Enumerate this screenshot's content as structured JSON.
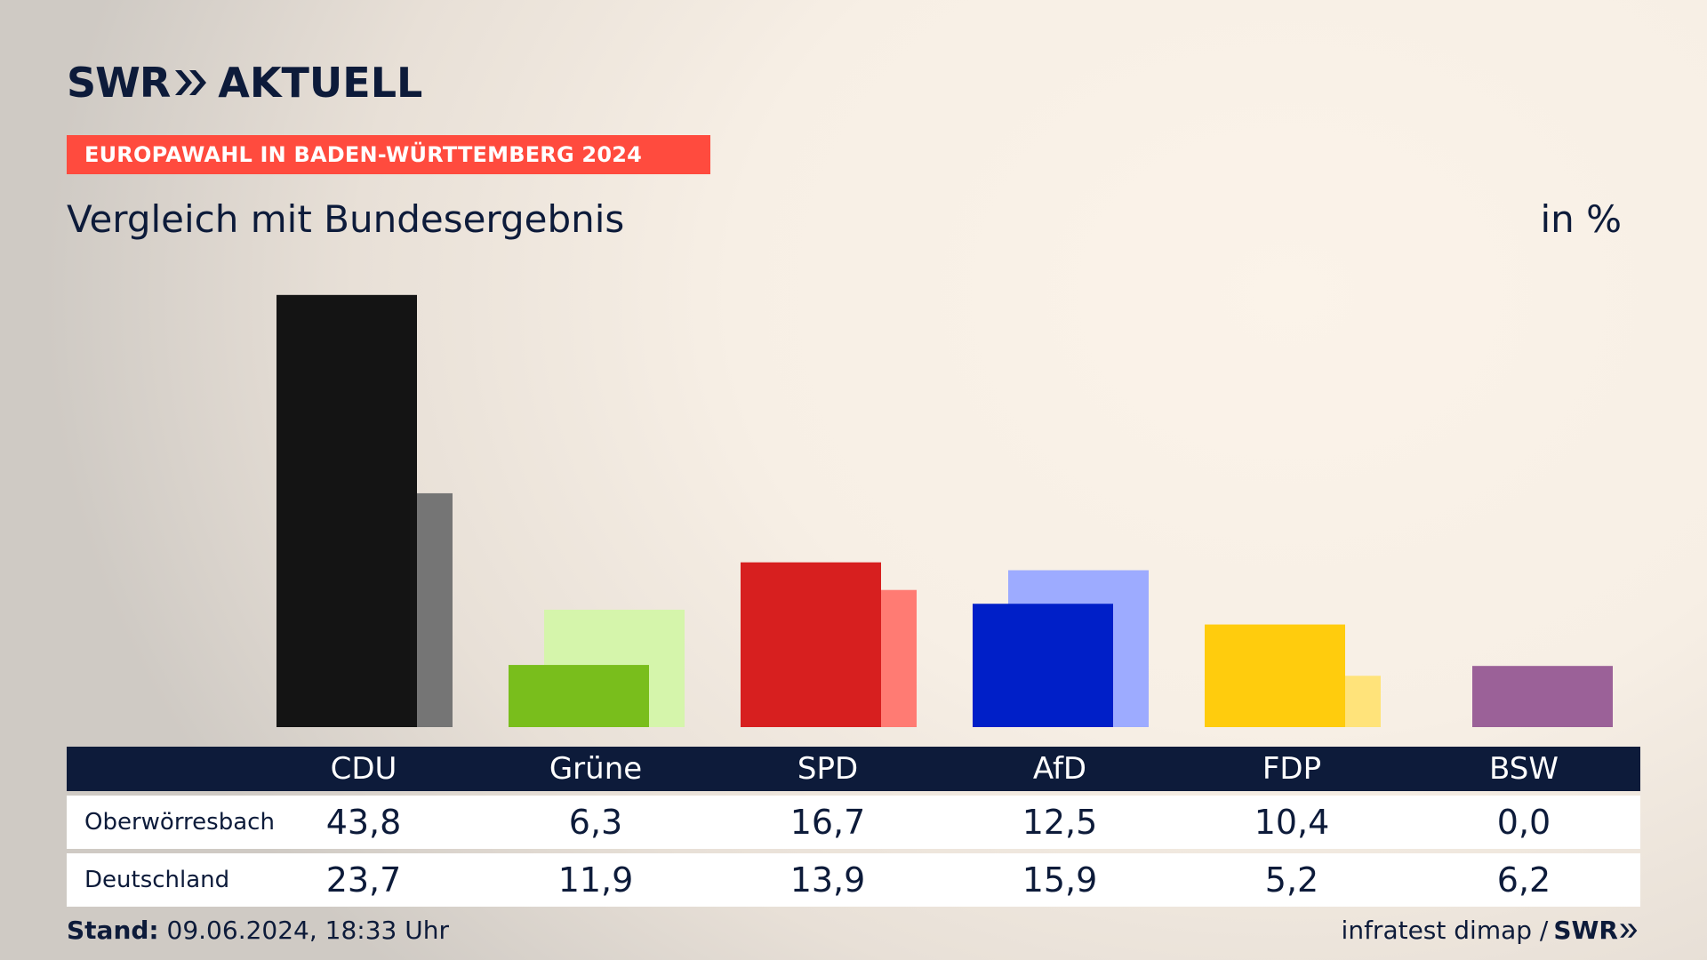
{
  "header": {
    "logo_left": "SWR",
    "logo_right": "AKTUELL",
    "banner": "EUROPAWAHL IN BADEN-WÜRTTEMBERG 2024",
    "subtitle": "Vergleich mit Bundesergebnis",
    "unit": "in %"
  },
  "chart_data": {
    "type": "bar",
    "categories": [
      "CDU",
      "Grüne",
      "SPD",
      "AfD",
      "FDP",
      "BSW"
    ],
    "series": [
      {
        "name": "Oberwörresbach",
        "values": [
          43.8,
          6.3,
          16.7,
          12.5,
          10.4,
          0.0
        ],
        "display": [
          "43,8",
          "6,3",
          "16,7",
          "12,5",
          "10,4",
          "0,0"
        ]
      },
      {
        "name": "Deutschland",
        "values": [
          23.7,
          11.9,
          13.9,
          15.9,
          5.2,
          6.2
        ],
        "display": [
          "23,7",
          "11,9",
          "13,9",
          "15,9",
          "5,2",
          "6,2"
        ]
      }
    ],
    "colors_primary": [
      "#141414",
      "#79be1c",
      "#d71f1f",
      "#001fc8",
      "#ffcc0d",
      "#9b6198"
    ],
    "colors_secondary": [
      "#757575",
      "#d5f5ab",
      "#ff7b73",
      "#9dabff",
      "#ffe37a",
      "#9b6198"
    ],
    "ylim": [
      0,
      45
    ]
  },
  "footer": {
    "stand_label": "Stand:",
    "stand_value": "09.06.2024, 18:33 Uhr",
    "source": "infratest dimap /",
    "source_logo": "SWR"
  }
}
